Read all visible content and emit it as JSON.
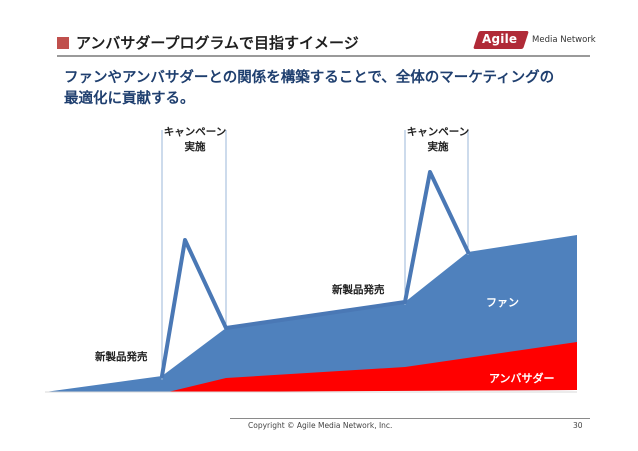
{
  "header": {
    "title": "アンバサダープログラムで目指すイメージ",
    "accent_color": "#c0504d"
  },
  "logo": {
    "badge_text": "Agile",
    "text": "Media Network",
    "badge_color": "#b02a37"
  },
  "headline": {
    "line1": "ファンやアンバサダーとの関係を構築することで、全体のマーケティングの",
    "line2": "最適化に貢献する。"
  },
  "diagram": {
    "campaign_label_1_line1": "キャンペーン",
    "campaign_label_1_line2": "実施",
    "campaign_label_2_line1": "キャンペーン",
    "campaign_label_2_line2": "実施",
    "new_product_label_1": "新製品発売",
    "new_product_label_2": "新製品発売",
    "fan_label": "ファン",
    "ambassador_label": "アンバサダー",
    "fan_color": "#4f81bd",
    "ambassador_color": "#ff0000",
    "line_color": "#4a78b5"
  },
  "footer": {
    "copyright": "Copyright © Agile Media Network, Inc.",
    "page_number": "30"
  }
}
